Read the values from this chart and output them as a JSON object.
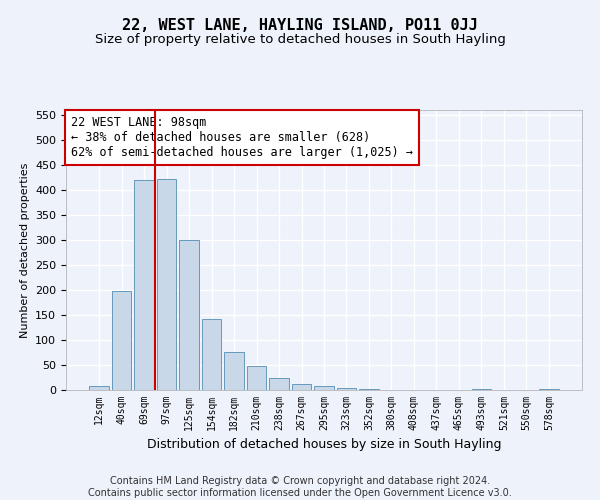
{
  "title": "22, WEST LANE, HAYLING ISLAND, PO11 0JJ",
  "subtitle": "Size of property relative to detached houses in South Hayling",
  "xlabel": "Distribution of detached houses by size in South Hayling",
  "ylabel": "Number of detached properties",
  "bar_labels": [
    "12sqm",
    "40sqm",
    "69sqm",
    "97sqm",
    "125sqm",
    "154sqm",
    "182sqm",
    "210sqm",
    "238sqm",
    "267sqm",
    "295sqm",
    "323sqm",
    "352sqm",
    "380sqm",
    "408sqm",
    "437sqm",
    "465sqm",
    "493sqm",
    "521sqm",
    "550sqm",
    "578sqm"
  ],
  "bar_values": [
    8,
    198,
    420,
    422,
    300,
    143,
    77,
    48,
    24,
    12,
    8,
    5,
    3,
    0,
    0,
    0,
    0,
    3,
    0,
    0,
    3
  ],
  "bar_color": "#c8d8e8",
  "bar_edgecolor": "#6699bb",
  "ylim": [
    0,
    560
  ],
  "yticks": [
    0,
    50,
    100,
    150,
    200,
    250,
    300,
    350,
    400,
    450,
    500,
    550
  ],
  "property_bin_index": 3,
  "vline_color": "#cc0000",
  "annotation_text": "22 WEST LANE: 98sqm\n← 38% of detached houses are smaller (628)\n62% of semi-detached houses are larger (1,025) →",
  "annotation_box_color": "#ffffff",
  "annotation_box_edgecolor": "#cc0000",
  "footer_text": "Contains HM Land Registry data © Crown copyright and database right 2024.\nContains public sector information licensed under the Open Government Licence v3.0.",
  "background_color": "#eef2fa",
  "grid_color": "#ffffff",
  "title_fontsize": 11,
  "subtitle_fontsize": 9.5,
  "annotation_fontsize": 8.5,
  "footer_fontsize": 7,
  "ylabel_fontsize": 8,
  "xlabel_fontsize": 9
}
